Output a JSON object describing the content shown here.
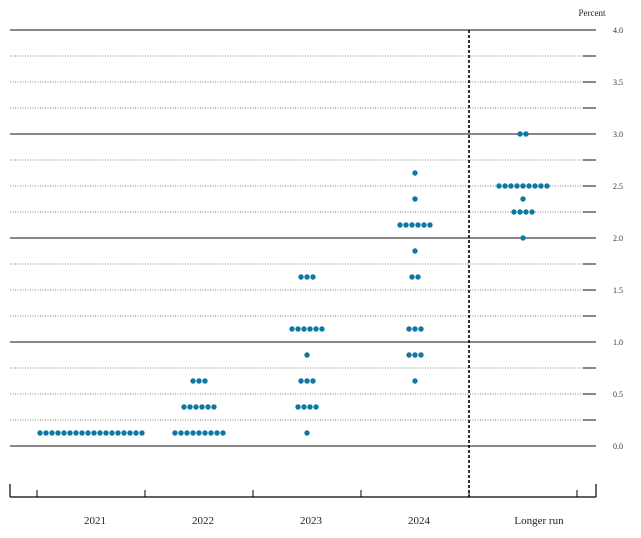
{
  "chart_data": {
    "type": "scatter",
    "subtype": "dot-plot",
    "ylabel": "Percent",
    "ylim": [
      0,
      4
    ],
    "y_ticks": [
      "0.0",
      "0.5",
      "1.0",
      "1.5",
      "2.0",
      "2.5",
      "3.0",
      "3.5",
      "4.0"
    ],
    "categories": [
      "2021",
      "2022",
      "2023",
      "2024",
      "Longer run"
    ],
    "grid": true,
    "divider_before": "Longer run",
    "dot_color": "#0b79a3",
    "columns": [
      {
        "category": "2021",
        "dots": [
          {
            "y": 0.125,
            "count": 18
          }
        ]
      },
      {
        "category": "2022",
        "dots": [
          {
            "y": 0.125,
            "count": 9
          },
          {
            "y": 0.375,
            "count": 6
          },
          {
            "y": 0.625,
            "count": 3
          }
        ]
      },
      {
        "category": "2023",
        "dots": [
          {
            "y": 0.125,
            "count": 1
          },
          {
            "y": 0.375,
            "count": 4
          },
          {
            "y": 0.625,
            "count": 3
          },
          {
            "y": 0.875,
            "count": 1
          },
          {
            "y": 1.125,
            "count": 6
          },
          {
            "y": 1.625,
            "count": 3
          }
        ]
      },
      {
        "category": "2024",
        "dots": [
          {
            "y": 0.625,
            "count": 1
          },
          {
            "y": 0.875,
            "count": 3
          },
          {
            "y": 1.125,
            "count": 3
          },
          {
            "y": 1.625,
            "count": 2
          },
          {
            "y": 1.875,
            "count": 1
          },
          {
            "y": 2.125,
            "count": 6
          },
          {
            "y": 2.375,
            "count": 1
          },
          {
            "y": 2.625,
            "count": 1
          }
        ]
      },
      {
        "category": "Longer run",
        "dots": [
          {
            "y": 2.0,
            "count": 1
          },
          {
            "y": 2.25,
            "count": 4
          },
          {
            "y": 2.375,
            "count": 1
          },
          {
            "y": 2.5,
            "count": 9
          },
          {
            "y": 3.0,
            "count": 2
          }
        ]
      }
    ]
  }
}
